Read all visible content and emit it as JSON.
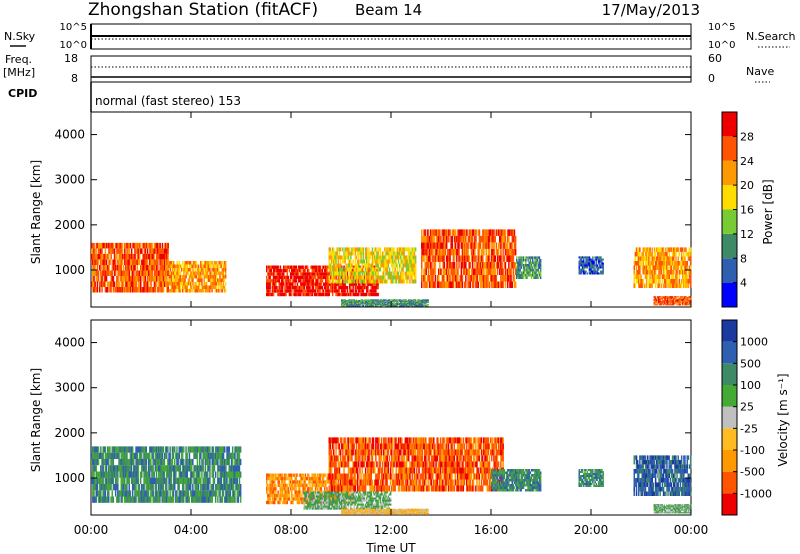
{
  "header": {
    "station": "Zhongshan Station (fitACF)",
    "beam": "Beam 14",
    "date": "17/May/2013"
  },
  "top_panels": {
    "nsky_label": "N.Sky",
    "nsky_ticks": [
      "10^5",
      "10^0"
    ],
    "nsearch_label": "N.Search",
    "nsearch_ticks": [
      "10^5",
      "10^0"
    ],
    "freq_label_1": "Freq.",
    "freq_label_2": "[MHz]",
    "freq_ticks": [
      "18",
      "8"
    ],
    "nave_label": "Nave",
    "nave_ticks": [
      "60",
      "0"
    ],
    "cpid_label": "CPID",
    "cpid_text": "normal (fast stereo) 153"
  },
  "chart_data": [
    {
      "type": "heatmap",
      "name": "power",
      "ylabel": "Slant Range [km]",
      "yticks": [
        "4000",
        "3000",
        "2000",
        "1000"
      ],
      "ylim": [
        180,
        4500
      ],
      "xlim": [
        0,
        24
      ],
      "colorbar_label": "Power [dB]",
      "colorbar_ticks": [
        "28",
        "24",
        "20",
        "16",
        "12",
        "8",
        "4"
      ],
      "colors": [
        "#0000ff",
        "#2f5fb0",
        "#3f8a66",
        "#77cc33",
        "#ffdd00",
        "#ff9900",
        "#ff5500",
        "#ee0000"
      ],
      "regions": [
        {
          "t0": 0.0,
          "t1": 3.1,
          "r0": 500,
          "r1": 1600,
          "level": 6
        },
        {
          "t0": 3.1,
          "t1": 5.4,
          "r0": 500,
          "r1": 1200,
          "level": 5
        },
        {
          "t0": 7.0,
          "t1": 11.5,
          "r0": 420,
          "r1": 1100,
          "level": 7
        },
        {
          "t0": 9.5,
          "t1": 13.0,
          "r0": 700,
          "r1": 1500,
          "level": 4
        },
        {
          "t0": 10.0,
          "t1": 13.5,
          "r0": 200,
          "r1": 350,
          "level": 2
        },
        {
          "t0": 13.2,
          "t1": 17.0,
          "r0": 600,
          "r1": 1900,
          "level": 6
        },
        {
          "t0": 17.0,
          "t1": 18.0,
          "r0": 800,
          "r1": 1300,
          "level": 2
        },
        {
          "t0": 19.5,
          "t1": 20.5,
          "r0": 900,
          "r1": 1300,
          "level": 1
        },
        {
          "t0": 21.7,
          "t1": 24.0,
          "r0": 600,
          "r1": 1500,
          "level": 5
        },
        {
          "t0": 22.5,
          "t1": 24.0,
          "r0": 220,
          "r1": 420,
          "level": 6
        }
      ]
    },
    {
      "type": "heatmap",
      "name": "velocity",
      "ylabel": "Slant Range [km]",
      "yticks": [
        "4000",
        "3000",
        "2000",
        "1000"
      ],
      "ylim": [
        180,
        4500
      ],
      "xlim": [
        0,
        24
      ],
      "colorbar_label": "Velocity [m s⁻¹]",
      "colorbar_ticks": [
        "1000",
        "500",
        "100",
        "25",
        "-25",
        "-100",
        "-500",
        "-1000"
      ],
      "colors": [
        "#ee0000",
        "#ff5500",
        "#ff9900",
        "#ffbb22",
        "#c0c0c0",
        "#44aa33",
        "#3f8a66",
        "#2f5fb0",
        "#1a3aa0"
      ],
      "regions": [
        {
          "t0": 0.0,
          "t1": 6.0,
          "r0": 450,
          "r1": 1700,
          "level": 6
        },
        {
          "t0": 7.0,
          "t1": 10.5,
          "r0": 420,
          "r1": 1100,
          "level": 2
        },
        {
          "t0": 9.5,
          "t1": 16.5,
          "r0": 700,
          "r1": 1900,
          "level": 1
        },
        {
          "t0": 8.5,
          "t1": 12.0,
          "r0": 300,
          "r1": 700,
          "level": 5
        },
        {
          "t0": 10.0,
          "t1": 13.5,
          "r0": 200,
          "r1": 320,
          "level": 3
        },
        {
          "t0": 16.0,
          "t1": 18.0,
          "r0": 700,
          "r1": 1200,
          "level": 6
        },
        {
          "t0": 19.5,
          "t1": 20.5,
          "r0": 800,
          "r1": 1200,
          "level": 6
        },
        {
          "t0": 21.7,
          "t1": 24.0,
          "r0": 600,
          "r1": 1500,
          "level": 7
        },
        {
          "t0": 22.5,
          "t1": 24.0,
          "r0": 220,
          "r1": 420,
          "level": 5
        }
      ]
    }
  ],
  "xaxis": {
    "ticks": [
      "00:00",
      "04:00",
      "08:00",
      "12:00",
      "16:00",
      "20:00",
      "00:00"
    ],
    "label": "Time UT"
  }
}
